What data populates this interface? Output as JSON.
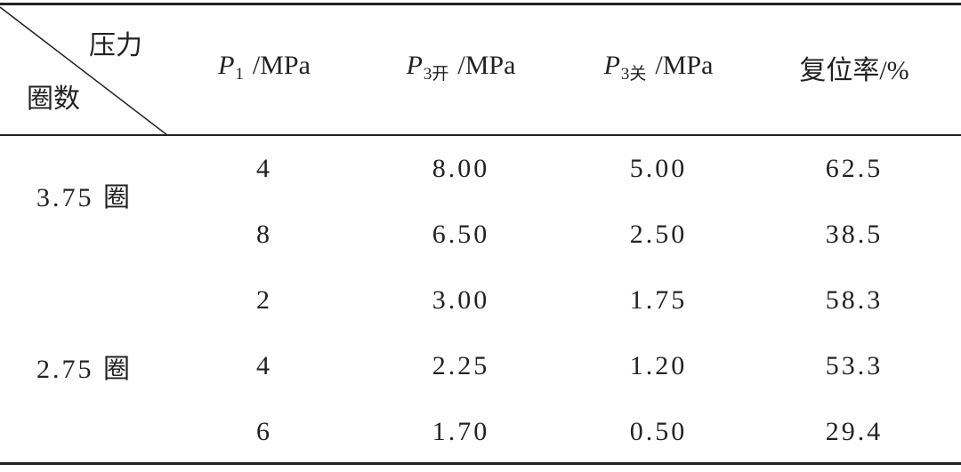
{
  "table": {
    "corner": {
      "top": "压力",
      "bottom": "圈数"
    },
    "columns": [
      {
        "symbol": "P",
        "subscript": "1",
        "unit": "/MPa"
      },
      {
        "symbol": "P",
        "subscript": "3开",
        "unit": "/MPa"
      },
      {
        "symbol": "P",
        "subscript": "3关",
        "unit": "/MPa"
      },
      {
        "label": "复位率/%"
      }
    ],
    "groups": [
      {
        "label": "3.75 圈",
        "rows": [
          [
            "4",
            "8.00",
            "5.00",
            "62.5"
          ],
          [
            "8",
            "6.50",
            "2.50",
            "38.5"
          ]
        ]
      },
      {
        "label": "2.75 圈",
        "rows": [
          [
            "2",
            "3.00",
            "1.75",
            "58.3"
          ],
          [
            "4",
            "2.25",
            "1.20",
            "53.3"
          ],
          [
            "6",
            "1.70",
            "0.50",
            "29.4"
          ]
        ]
      }
    ]
  }
}
